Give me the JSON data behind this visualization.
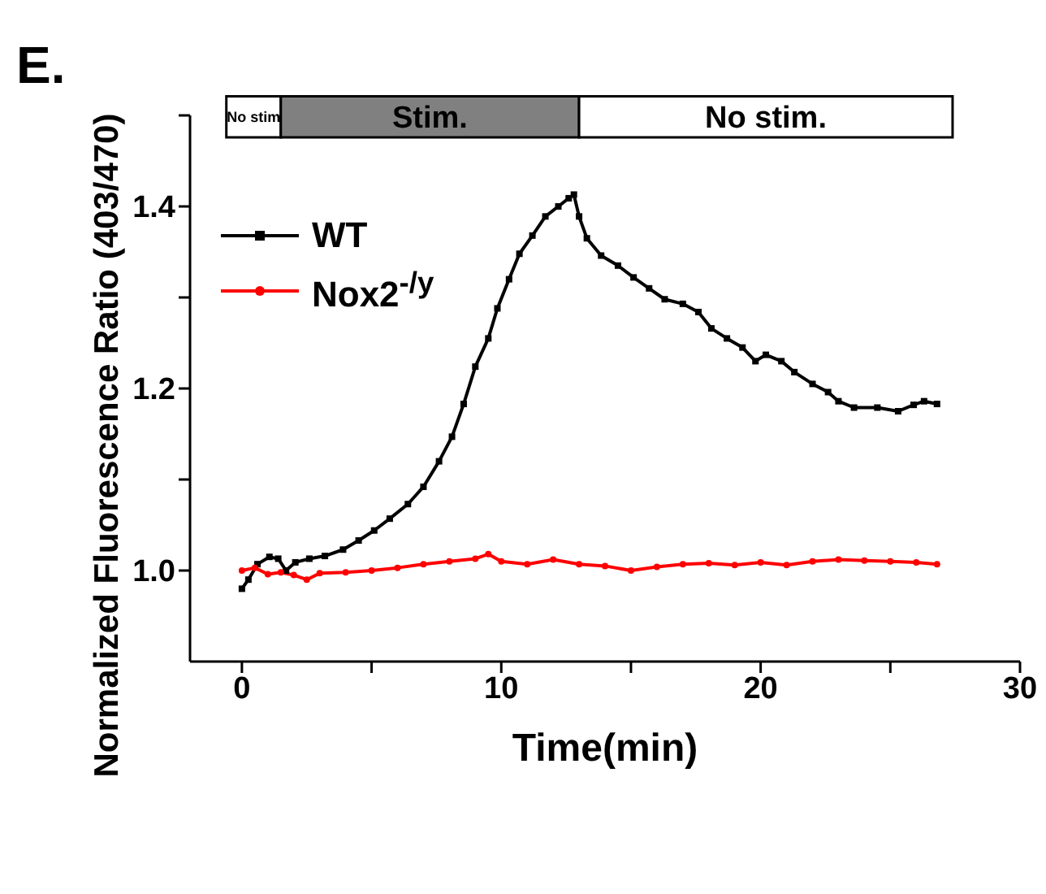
{
  "chart_data": {
    "type": "line",
    "xlabel": "Time(min)",
    "ylabel": "Normalized Fluorescence Ratio (403/470)",
    "annotations": [
      "E."
    ],
    "xlim": [
      -2,
      30
    ],
    "xticks": [
      0,
      {
        "value": 5,
        "label": null
      },
      10,
      {
        "value": 15,
        "label": null
      },
      20,
      {
        "value": 25,
        "label": null
      },
      30
    ],
    "ylim": [
      0.9,
      1.5
    ],
    "yticks": [
      {
        "value": 1.0,
        "label": "1.0"
      },
      {
        "value": 1.1,
        "label": null
      },
      {
        "value": 1.2,
        "label": "1.2"
      },
      {
        "value": 1.3,
        "label": null
      },
      {
        "value": 1.4,
        "label": "1.4"
      },
      {
        "value": 1.5,
        "label": null
      }
    ],
    "legend": "top left",
    "grid": false,
    "bands": [
      {
        "axis": "x",
        "from": -0.6,
        "to": 1.5,
        "label": "No stim",
        "color": "#ffffff"
      },
      {
        "axis": "x",
        "from": 1.5,
        "to": 13.0,
        "label": "Stim.",
        "color": "#808080"
      },
      {
        "axis": "x",
        "from": 13.0,
        "to": 27.4,
        "label": "No stim.",
        "color": "#ffffff"
      }
    ],
    "series": [
      {
        "name": "WT",
        "color": "#000000",
        "marker": "square",
        "x": [
          0,
          0.25,
          0.6,
          1.06,
          1.4,
          1.7,
          2.06,
          2.6,
          3.2,
          3.9,
          4.5,
          5.1,
          5.7,
          6.4,
          7.0,
          7.6,
          8.1,
          8.55,
          9.0,
          9.5,
          9.85,
          10.3,
          10.7,
          11.2,
          11.7,
          12.2,
          12.6,
          12.8,
          13.0,
          13.3,
          13.85,
          14.5,
          15.1,
          15.7,
          16.3,
          17.0,
          17.6,
          18.1,
          18.7,
          19.3,
          19.8,
          20.2,
          20.8,
          21.3,
          22.0,
          22.6,
          23.0,
          23.6,
          24.5,
          25.3,
          25.9,
          26.3,
          26.8
        ],
        "values": [
          0.98,
          0.99,
          1.007,
          1.015,
          1.013,
          1.0,
          1.009,
          1.013,
          1.016,
          1.023,
          1.033,
          1.044,
          1.057,
          1.073,
          1.092,
          1.12,
          1.147,
          1.183,
          1.224,
          1.255,
          1.288,
          1.32,
          1.348,
          1.368,
          1.389,
          1.4,
          1.409,
          1.413,
          1.389,
          1.365,
          1.346,
          1.335,
          1.322,
          1.31,
          1.298,
          1.293,
          1.284,
          1.266,
          1.255,
          1.245,
          1.23,
          1.237,
          1.23,
          1.218,
          1.205,
          1.196,
          1.186,
          1.179,
          1.179,
          1.175,
          1.182,
          1.186,
          1.183
        ]
      },
      {
        "name": "Nox2$^{-/y}$",
        "color": "#ff0000",
        "marker": "circle",
        "x": [
          0,
          0.5,
          1.0,
          1.5,
          2.0,
          2.5,
          3,
          4,
          5,
          6,
          7,
          8,
          9,
          9.5,
          10,
          11,
          12,
          13,
          14,
          15,
          16,
          17,
          18,
          19,
          20,
          21,
          22,
          23,
          24,
          25,
          26,
          26.8
        ],
        "values": [
          1.0,
          1.003,
          0.996,
          0.998,
          0.995,
          0.99,
          0.997,
          0.998,
          1.0,
          1.003,
          1.007,
          1.01,
          1.013,
          1.018,
          1.01,
          1.007,
          1.012,
          1.007,
          1.005,
          1.0,
          1.004,
          1.007,
          1.008,
          1.006,
          1.009,
          1.006,
          1.01,
          1.012,
          1.011,
          1.01,
          1.009,
          1.007
        ]
      }
    ]
  }
}
